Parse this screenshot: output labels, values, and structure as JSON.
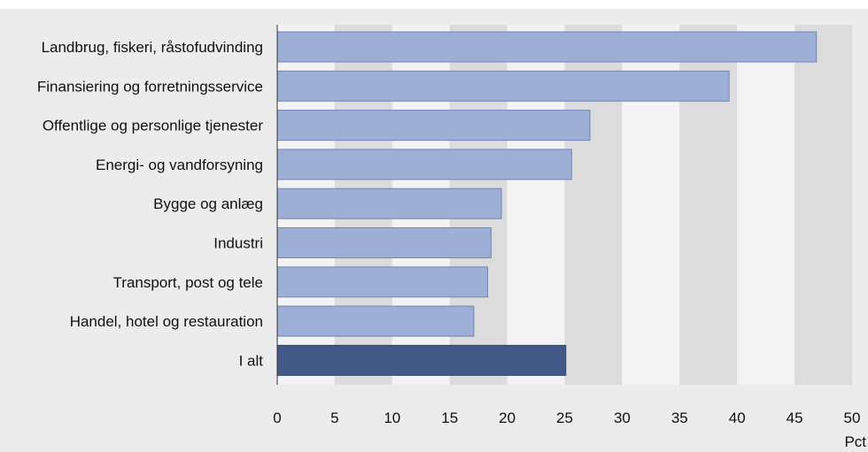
{
  "chart_data": {
    "type": "bar",
    "orientation": "horizontal",
    "categories": [
      "Landbrug, fiskeri, råstofudvinding",
      "Finansiering og forretningsservice",
      "Offentlige og personlige tjenester",
      "Energi- og vandforsyning",
      "Bygge og anlæg",
      "Industri",
      "Transport, post og tele",
      "Handel, hotel og restauration",
      "I alt"
    ],
    "values": [
      46.9,
      39.3,
      27.2,
      25.6,
      19.5,
      18.6,
      18.3,
      17.1,
      25.1
    ],
    "highlight_index": 8,
    "xlim": [
      0,
      50
    ],
    "xticks": [
      0,
      5,
      10,
      15,
      20,
      25,
      30,
      35,
      40,
      45,
      50
    ],
    "xlabel": "Pct",
    "grid": "vertical, alternating shaded bands",
    "colors": {
      "background": "#ececec",
      "plot_band_light": "#f3f3f3",
      "plot_band_dark": "#dcdcdc",
      "bar_fill": "#9dafd4",
      "bar_stroke": "#6f86b8",
      "highlight_fill": "#415a88",
      "highlight_stroke": "#33496f",
      "axis": "#333333"
    }
  }
}
